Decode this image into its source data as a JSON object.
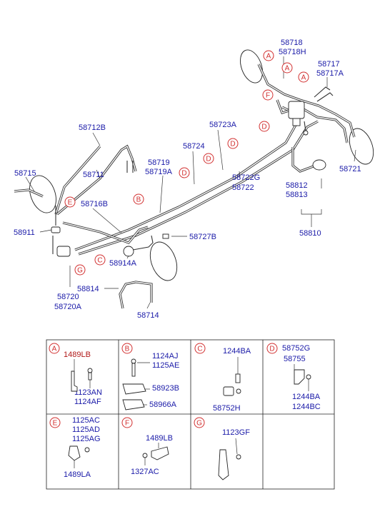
{
  "main_labels": {
    "p58718": "58718",
    "p58718H": "58718H",
    "p58717": "58717",
    "p58717A": "58717A",
    "p58712B": "58712B",
    "p58723A": "58723A",
    "p58724": "58724",
    "p58719": "58719",
    "p58719A": "58719A",
    "p58711": "58711",
    "p58722G": "58722G",
    "p58722": "58722",
    "p58721": "58721",
    "p58715": "58715",
    "p58716B": "58716B",
    "p58812": "58812",
    "p58813": "58813",
    "p58911": "58911",
    "p58810": "58810",
    "p58727B": "58727B",
    "p58914A": "58914A",
    "p58814": "58814",
    "p58720": "58720",
    "p58720A": "58720A",
    "p58714": "58714"
  },
  "callouts": {
    "A": "A",
    "B": "B",
    "C": "C",
    "D": "D",
    "E": "E",
    "F": "F",
    "G": "G"
  },
  "detail_boxes": {
    "A": {
      "letter": "A",
      "labels": [
        "1489LB",
        "1123AN",
        "1124AF"
      ]
    },
    "B": {
      "letter": "B",
      "labels": [
        "1124AJ",
        "1125AE",
        "58923B",
        "58966A"
      ]
    },
    "C": {
      "letter": "C",
      "labels": [
        "1244BA",
        "58752H"
      ]
    },
    "D": {
      "letter": "D",
      "labels": [
        "58752G",
        "58755",
        "1244BA",
        "1244BC"
      ]
    },
    "E": {
      "letter": "E",
      "labels": [
        "1125AC",
        "1125AD",
        "1125AG",
        "1489LA"
      ]
    },
    "F": {
      "letter": "F",
      "labels": [
        "1489LB",
        "1327AC"
      ]
    },
    "G": {
      "letter": "G",
      "labels": [
        "1123GF"
      ]
    }
  }
}
